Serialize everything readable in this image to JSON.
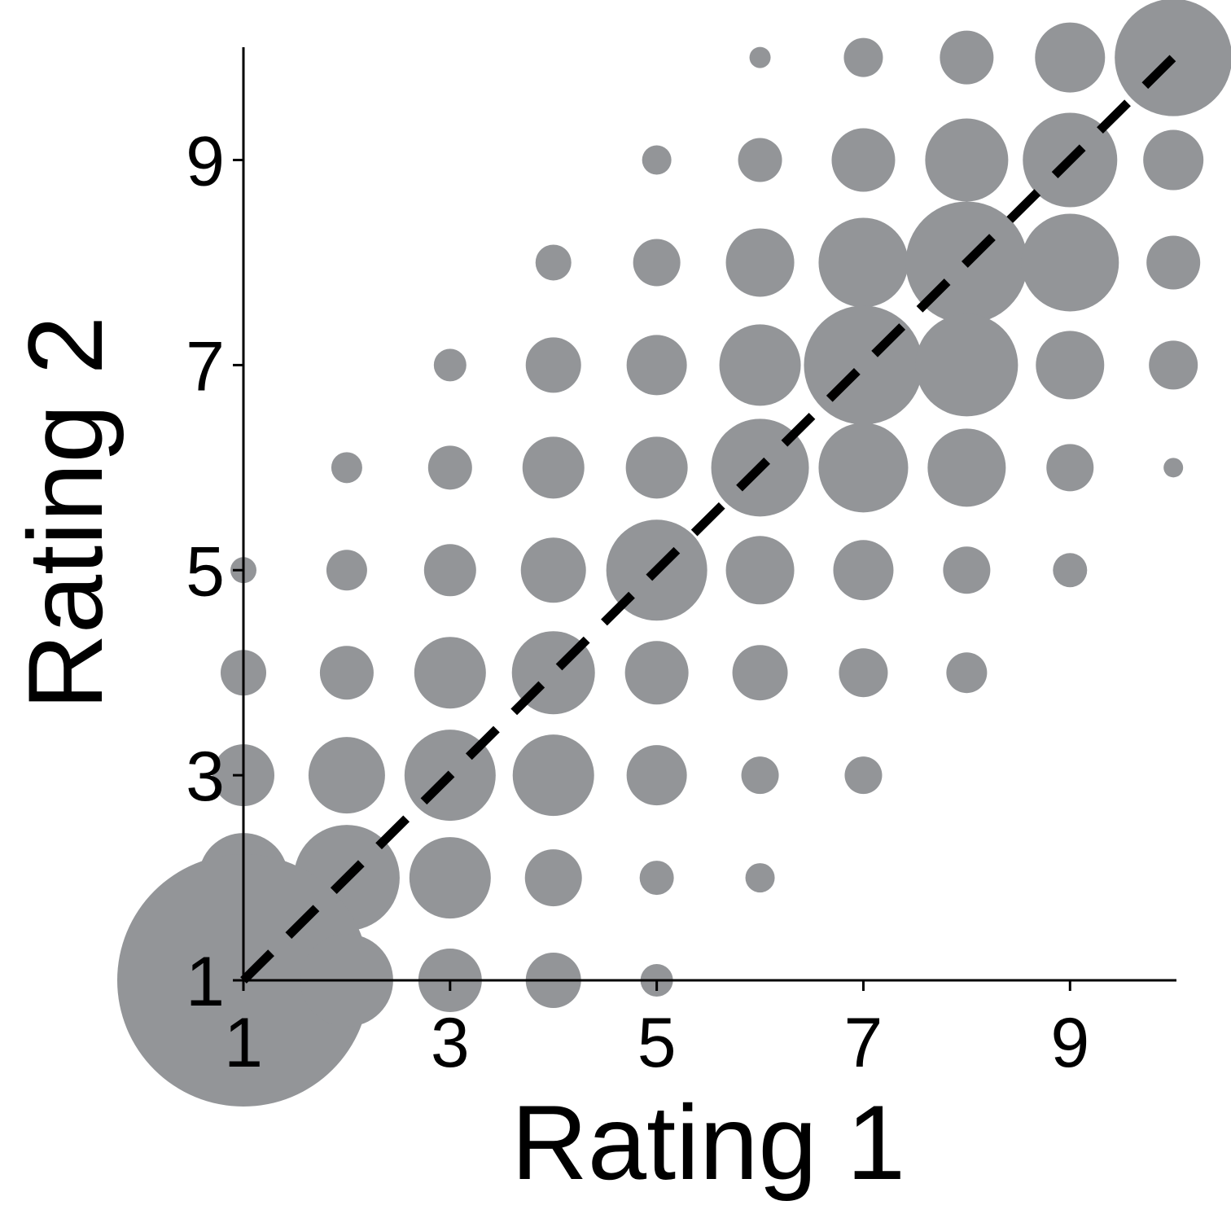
{
  "chart_data": {
    "type": "scatter",
    "x_label": "Rating 1",
    "y_label": "Rating 2",
    "xlim": [
      1,
      10.03
    ],
    "ylim": [
      1,
      10.1
    ],
    "xticks": [
      1,
      3,
      5,
      7,
      9
    ],
    "yticks": [
      1,
      3,
      5,
      7,
      9
    ],
    "color": "#939598",
    "series": [
      {
        "x": [
          6,
          7,
          8,
          9,
          10,
          5,
          6,
          7,
          8,
          9,
          10,
          4,
          5,
          6,
          7,
          8,
          9,
          10,
          3,
          4,
          5,
          6,
          7,
          8,
          9,
          10,
          2,
          3,
          4,
          5,
          6,
          7,
          8,
          9,
          10,
          1,
          2,
          3,
          4,
          5,
          6,
          7,
          8,
          9,
          1,
          2,
          3,
          4,
          5,
          6,
          7,
          8,
          1,
          2,
          3,
          4,
          5,
          6,
          7,
          1,
          2,
          3,
          4,
          5,
          6,
          1,
          2,
          3,
          4,
          5
        ],
        "y": [
          10,
          10,
          10,
          10,
          10,
          9,
          9,
          9,
          9,
          9,
          9,
          8,
          8,
          8,
          8,
          8,
          8,
          8,
          7,
          7,
          7,
          7,
          7,
          7,
          7,
          7,
          6,
          6,
          6,
          6,
          6,
          6,
          6,
          6,
          6,
          5,
          5,
          5,
          5,
          5,
          5,
          5,
          5,
          5,
          4,
          4,
          4,
          4,
          4,
          4,
          4,
          4,
          3,
          3,
          3,
          3,
          3,
          3,
          3,
          2,
          2,
          2,
          2,
          2,
          2,
          1,
          1,
          1,
          1,
          1
        ],
        "sizes": [
          13,
          24,
          33,
          43,
          72,
          18,
          27,
          39,
          51,
          58,
          37,
          22,
          29,
          42,
          55,
          75,
          60,
          33,
          20,
          34,
          37,
          50,
          73,
          63,
          42,
          30,
          19,
          27,
          38,
          38,
          60,
          55,
          48,
          29,
          12,
          16,
          25,
          32,
          40,
          62,
          42,
          37,
          29,
          21,
          28,
          33,
          44,
          51,
          39,
          34,
          30,
          25,
          38,
          47,
          56,
          50,
          37,
          23,
          23,
          55,
          65,
          50,
          35,
          21,
          18,
          155,
          57,
          39,
          34,
          20
        ]
      }
    ],
    "reference_line": {
      "x": [
        1,
        10
      ],
      "y": [
        1,
        10
      ]
    }
  }
}
